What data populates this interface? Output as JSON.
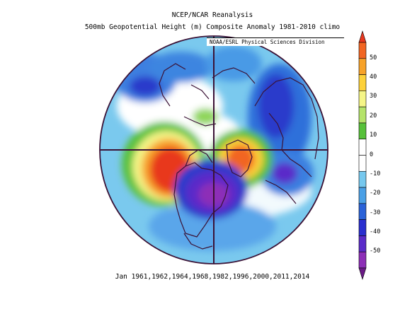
{
  "title": {
    "line1": "NCEP/NCAR Reanalysis",
    "line2": "500mb Geopotential Height (m) Composite Anomaly 1981-2010 climo",
    "credit": "NOAA/ESRL Physical Sciences Division"
  },
  "footer": "Jan 1961,1962,1964,1968,1982,1996,2000,2011,2014",
  "colorbar": {
    "tick_labels": [
      "50",
      "40",
      "30",
      "20",
      "10",
      "0",
      "-10",
      "-20",
      "-30",
      "-40",
      "-50"
    ],
    "levels_top_to_bottom": [
      {
        "color": "#e8371f"
      },
      {
        "color": "#f26522"
      },
      {
        "color": "#f7a229"
      },
      {
        "color": "#fdd13a"
      },
      {
        "color": "#f5f587"
      },
      {
        "color": "#b5e36a"
      },
      {
        "color": "#57c13a"
      },
      {
        "color": "#ffffff"
      },
      {
        "color": "#ffffff"
      },
      {
        "color": "#76c8ee"
      },
      {
        "color": "#4aa0e6"
      },
      {
        "color": "#2a62d8"
      },
      {
        "color": "#2a2fcf"
      },
      {
        "color": "#5a2bc9"
      },
      {
        "color": "#8d2fb7"
      },
      {
        "color": "#6a1a86"
      }
    ]
  }
}
